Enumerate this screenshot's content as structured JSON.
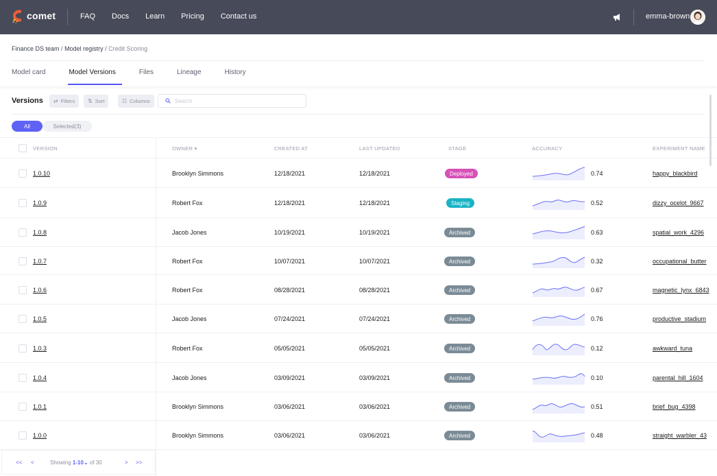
{
  "brand": {
    "name": "comet"
  },
  "nav": [
    "FAQ",
    "Docs",
    "Learn",
    "Pricing",
    "Contact us"
  ],
  "user": {
    "name": "emma-brown"
  },
  "breadcrumb": {
    "team": "Finance DS team",
    "registry": "Model registry",
    "current": "Credit Scoring",
    "sep": "/"
  },
  "tabs": [
    "Model card",
    "Model Versions",
    "Files",
    "Lineage",
    "History"
  ],
  "toolbar": {
    "title": "Versions",
    "filters": "Filters",
    "sort": "Sort",
    "columns": "Columns",
    "search_placeholder": "Search"
  },
  "segment": {
    "all": "All",
    "selected": "Selected(3)"
  },
  "columns": {
    "version": "VERSION",
    "owner": "OWNER",
    "created": "CREATED AT",
    "updated": "LAST UPDATED",
    "stage": "STAGE",
    "accuracy": "ACCURACY",
    "experiment": "EXPERIMENT NAME"
  },
  "stage_colors": {
    "Deployed": "#d651b8",
    "Staging": "#1ab3c4",
    "Archived": "#7b8b96"
  },
  "rows": [
    {
      "version": "1.0.10",
      "owner": "Brooklyn Simmons",
      "created": "12/18/2021",
      "updated": "12/18/2021",
      "stage": "Deployed",
      "accuracy": "0.74",
      "experiment": "happy_blackbird"
    },
    {
      "version": "1.0.9",
      "owner": "Robert Fox",
      "created": "12/18/2021",
      "updated": "12/18/2021",
      "stage": "Staging",
      "accuracy": "0.52",
      "experiment": "dizzy_ocelot_9667"
    },
    {
      "version": "1.0.8",
      "owner": "Jacob Jones",
      "created": "10/19/2021",
      "updated": "10/19/2021",
      "stage": "Archived",
      "accuracy": "0.63",
      "experiment": "spatial_work_4296"
    },
    {
      "version": "1.0.7",
      "owner": "Robert Fox",
      "created": "10/07/2021",
      "updated": "10/07/2021",
      "stage": "Archived",
      "accuracy": "0.32",
      "experiment": "occupational_butter"
    },
    {
      "version": "1.0.6",
      "owner": "Robert Fox",
      "created": "08/28/2021",
      "updated": "08/28/2021",
      "stage": "Archived",
      "accuracy": "0.67",
      "experiment": "magnetic_lynx_6843"
    },
    {
      "version": "1.0.5",
      "owner": "Jacob Jones",
      "created": "07/24/2021",
      "updated": "07/24/2021",
      "stage": "Archived",
      "accuracy": "0.76",
      "experiment": "productive_stadium"
    },
    {
      "version": "1.0.3",
      "owner": "Robert Fox",
      "created": "05/05/2021",
      "updated": "05/05/2021",
      "stage": "Archived",
      "accuracy": "0.12",
      "experiment": "awkward_tuna"
    },
    {
      "version": "1.0.4",
      "owner": "Jacob Jones",
      "created": "03/09/2021",
      "updated": "03/09/2021",
      "stage": "Archived",
      "accuracy": "0.10",
      "experiment": "parental_hill_1604"
    },
    {
      "version": "1.0.1",
      "owner": "Brooklyn Simmons",
      "created": "03/06/2021",
      "updated": "03/06/2021",
      "stage": "Archived",
      "accuracy": "0.51",
      "experiment": "brief_bug_4398"
    },
    {
      "version": "1.0.0",
      "owner": "Brooklyn Simmons",
      "created": "03/06/2021",
      "updated": "03/06/2021",
      "stage": "Archived",
      "accuracy": "0.48",
      "experiment": "straight_warbler_43"
    }
  ],
  "pagination": {
    "first": "<<",
    "prev": "<",
    "showing": "Showing",
    "range": "1-10",
    "of": "of 30",
    "next": ">",
    "last": ">>"
  }
}
